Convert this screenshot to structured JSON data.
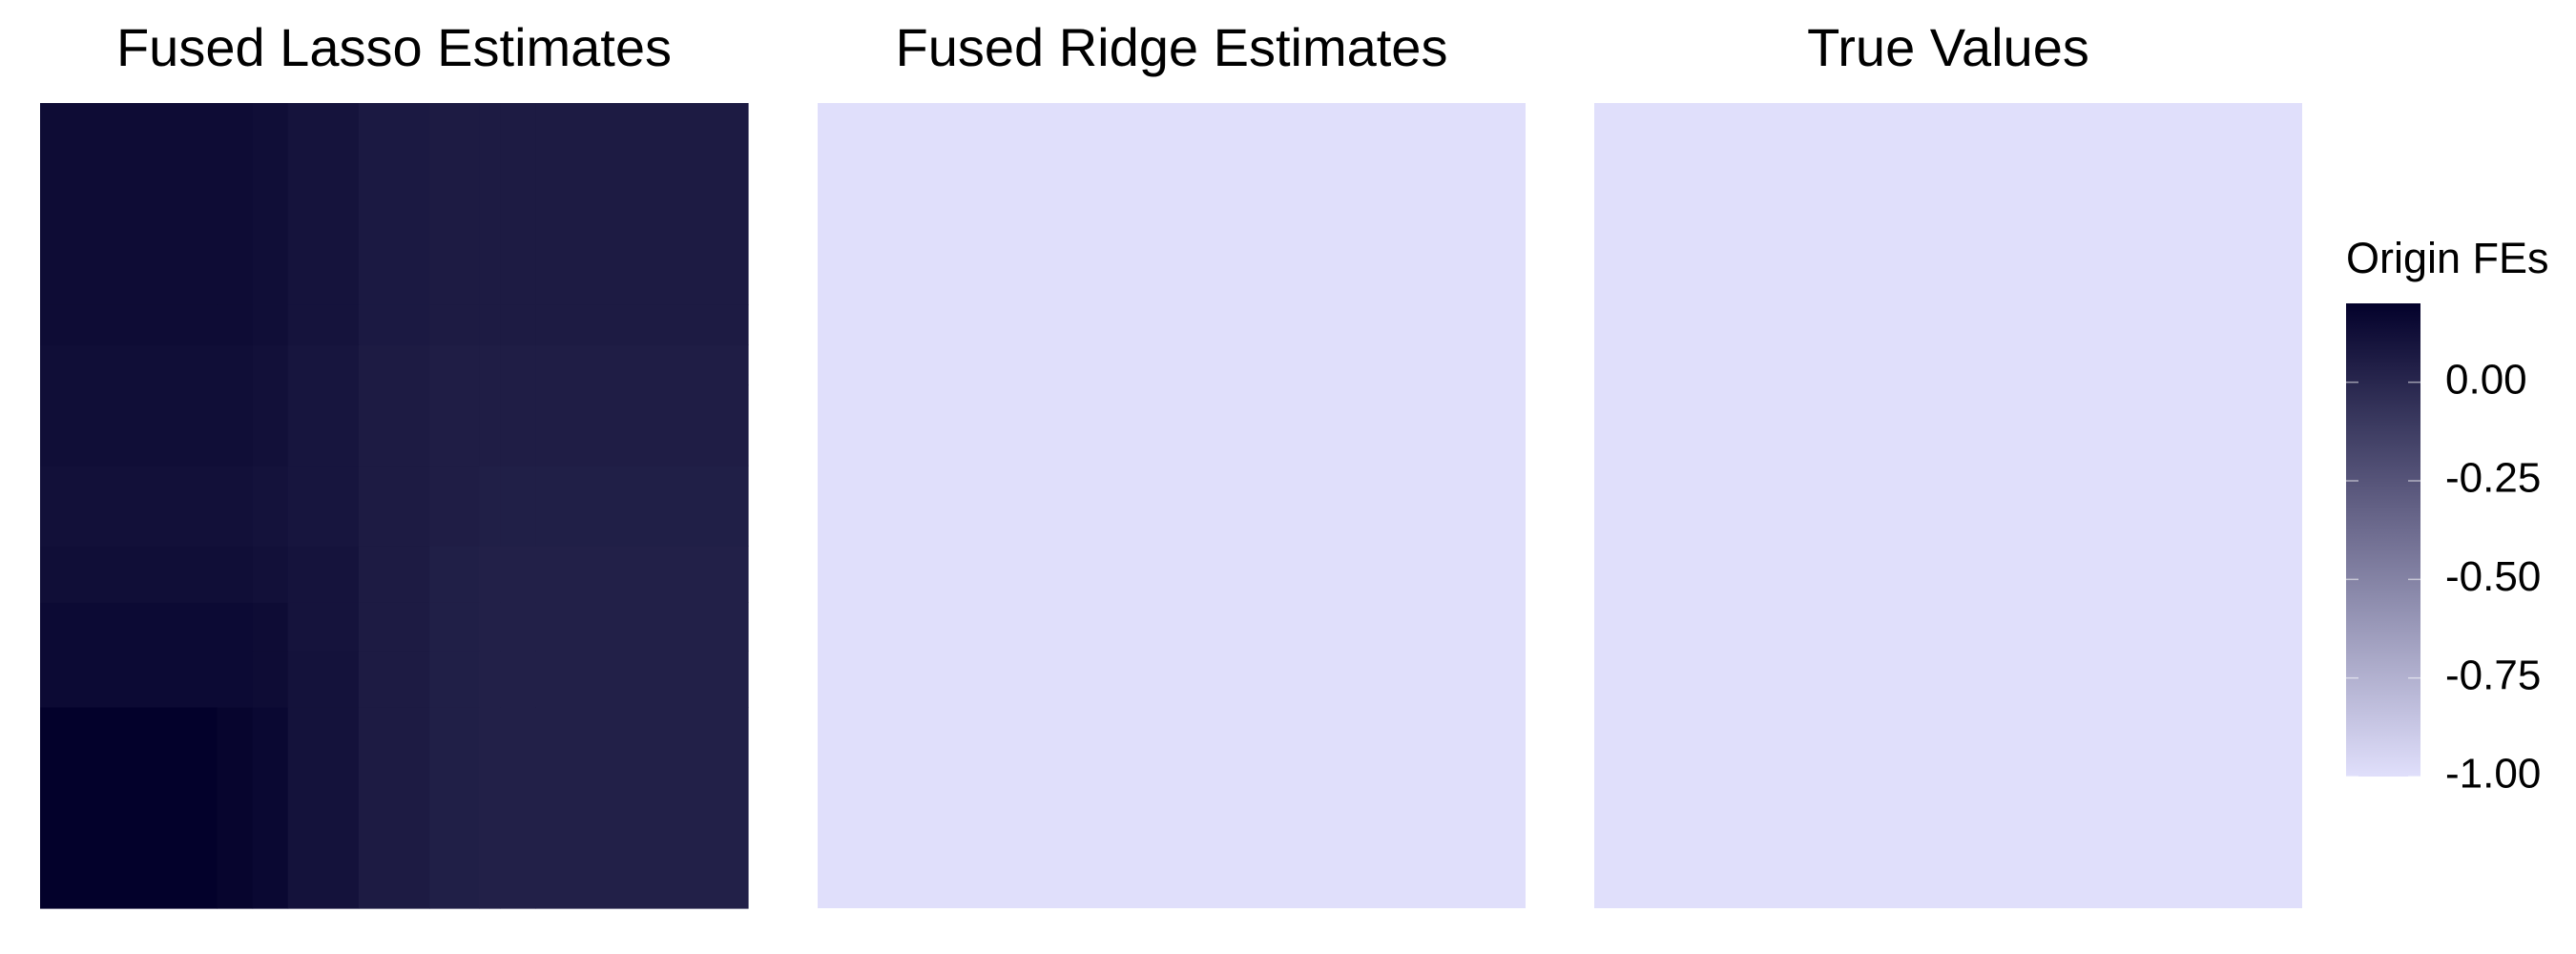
{
  "chart_data": {
    "type": "heatmap",
    "panels": [
      {
        "title": "Fused Lasso Estimates",
        "x_breaks": [
          0,
          0.25,
          0.3,
          0.35,
          0.45,
          0.55,
          0.62,
          0.65,
          0.7,
          1
        ],
        "y_breaks": [
          0,
          0.25,
          0.32,
          0.38,
          0.45,
          0.55,
          0.65,
          0.7,
          0.75,
          1
        ],
        "values": [
          [
            0.2,
            0.18,
            0.16,
            0.11,
            0.06,
            0.04,
            0.03,
            0.03,
            0.03
          ],
          [
            0.15,
            0.15,
            0.14,
            0.11,
            0.06,
            0.04,
            0.03,
            0.03,
            0.03
          ],
          [
            0.15,
            0.15,
            0.14,
            0.1,
            0.06,
            0.04,
            0.03,
            0.03,
            0.03
          ],
          [
            0.13,
            0.13,
            0.12,
            0.1,
            0.06,
            0.04,
            0.03,
            0.03,
            0.03
          ],
          [
            0.12,
            0.12,
            0.11,
            0.09,
            0.06,
            0.05,
            0.04,
            0.04,
            0.04
          ],
          [
            0.13,
            0.13,
            0.12,
            0.09,
            0.06,
            0.05,
            0.05,
            0.05,
            0.05
          ],
          [
            0.13,
            0.13,
            0.12,
            0.09,
            0.06,
            0.05,
            0.05,
            0.05,
            0.05
          ],
          [
            0.14,
            0.14,
            0.13,
            0.1,
            0.07,
            0.06,
            0.06,
            0.06,
            0.06
          ],
          [
            0.14,
            0.14,
            0.13,
            0.1,
            0.07,
            0.06,
            0.06,
            0.06,
            0.06
          ]
        ]
      },
      {
        "title": "Fused Ridge Estimates",
        "uniform_value": -1.0
      },
      {
        "title": "True Values",
        "uniform_value": -1.0
      }
    ],
    "legend": {
      "title": "Origin FEs",
      "placement": "right",
      "ticks": [
        0.0,
        -0.25,
        -0.5,
        -0.75,
        -1.0
      ],
      "tick_labels": [
        "0.00",
        "-0.25",
        "-0.50",
        "-0.75",
        "-1.00"
      ],
      "range": [
        -1.0,
        0.2
      ],
      "low_color": "#e0dffb",
      "high_color": "#03012b"
    },
    "grid": false,
    "axes_visible": false
  }
}
